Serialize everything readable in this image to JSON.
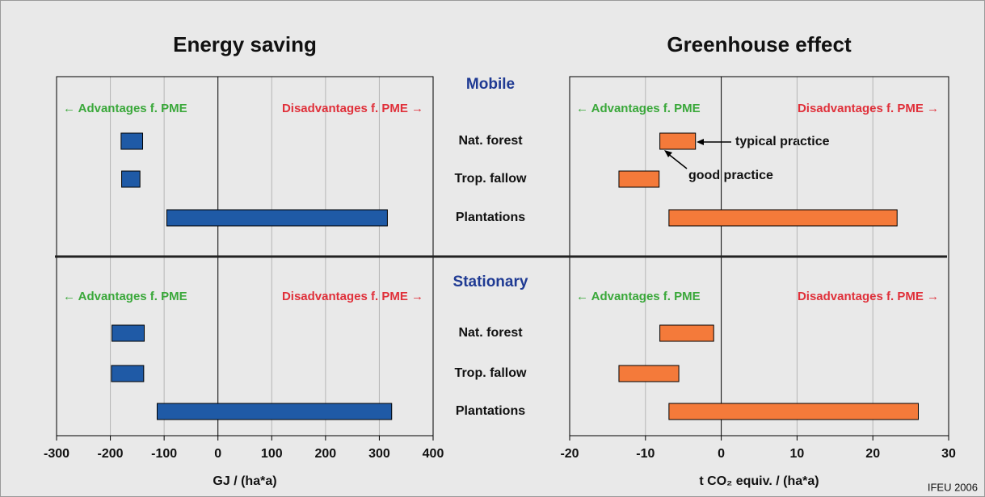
{
  "groups": [
    {
      "name": "Mobile",
      "categories": [
        "Nat. forest",
        "Trop. fallow",
        "Plantations"
      ]
    },
    {
      "name": "Stationary",
      "categories": [
        "Nat. forest",
        "Trop. fallow",
        "Plantations"
      ]
    }
  ],
  "advantages_label": "← Advantages f. PME",
  "disadvantages_label": "Disadvantages f. PME →",
  "credit": "IFEU 2006",
  "chart_data": [
    {
      "type": "range-bar",
      "title": "Energy saving",
      "xlabel": "GJ / (ha*a)",
      "color": "#1f5aa6",
      "xlim": [
        -300,
        400
      ],
      "xticks": [
        -300,
        -200,
        -100,
        0,
        100,
        200,
        300,
        400
      ],
      "grid": true,
      "low": [
        [
          -180,
          -179,
          -95
        ],
        [
          -197,
          -198,
          -113
        ]
      ],
      "high": [
        [
          -140,
          -145,
          315
        ],
        [
          -137,
          -138,
          323
        ]
      ]
    },
    {
      "type": "range-bar",
      "title": "Greenhouse effect",
      "xlabel": "t CO₂ equiv. / (ha*a)",
      "color": "#f47a3a",
      "xlim": [
        -20,
        30
      ],
      "xticks": [
        -20,
        -10,
        0,
        10,
        20,
        30
      ],
      "grid": true,
      "low": [
        [
          -8.1,
          -13.5,
          -6.9
        ],
        [
          -8.1,
          -13.5,
          -6.9
        ]
      ],
      "high": [
        [
          -3.4,
          -8.2,
          23.2
        ],
        [
          -1.0,
          -5.6,
          26.0
        ]
      ],
      "annotations": [
        "typical practice",
        "good practice"
      ]
    }
  ]
}
